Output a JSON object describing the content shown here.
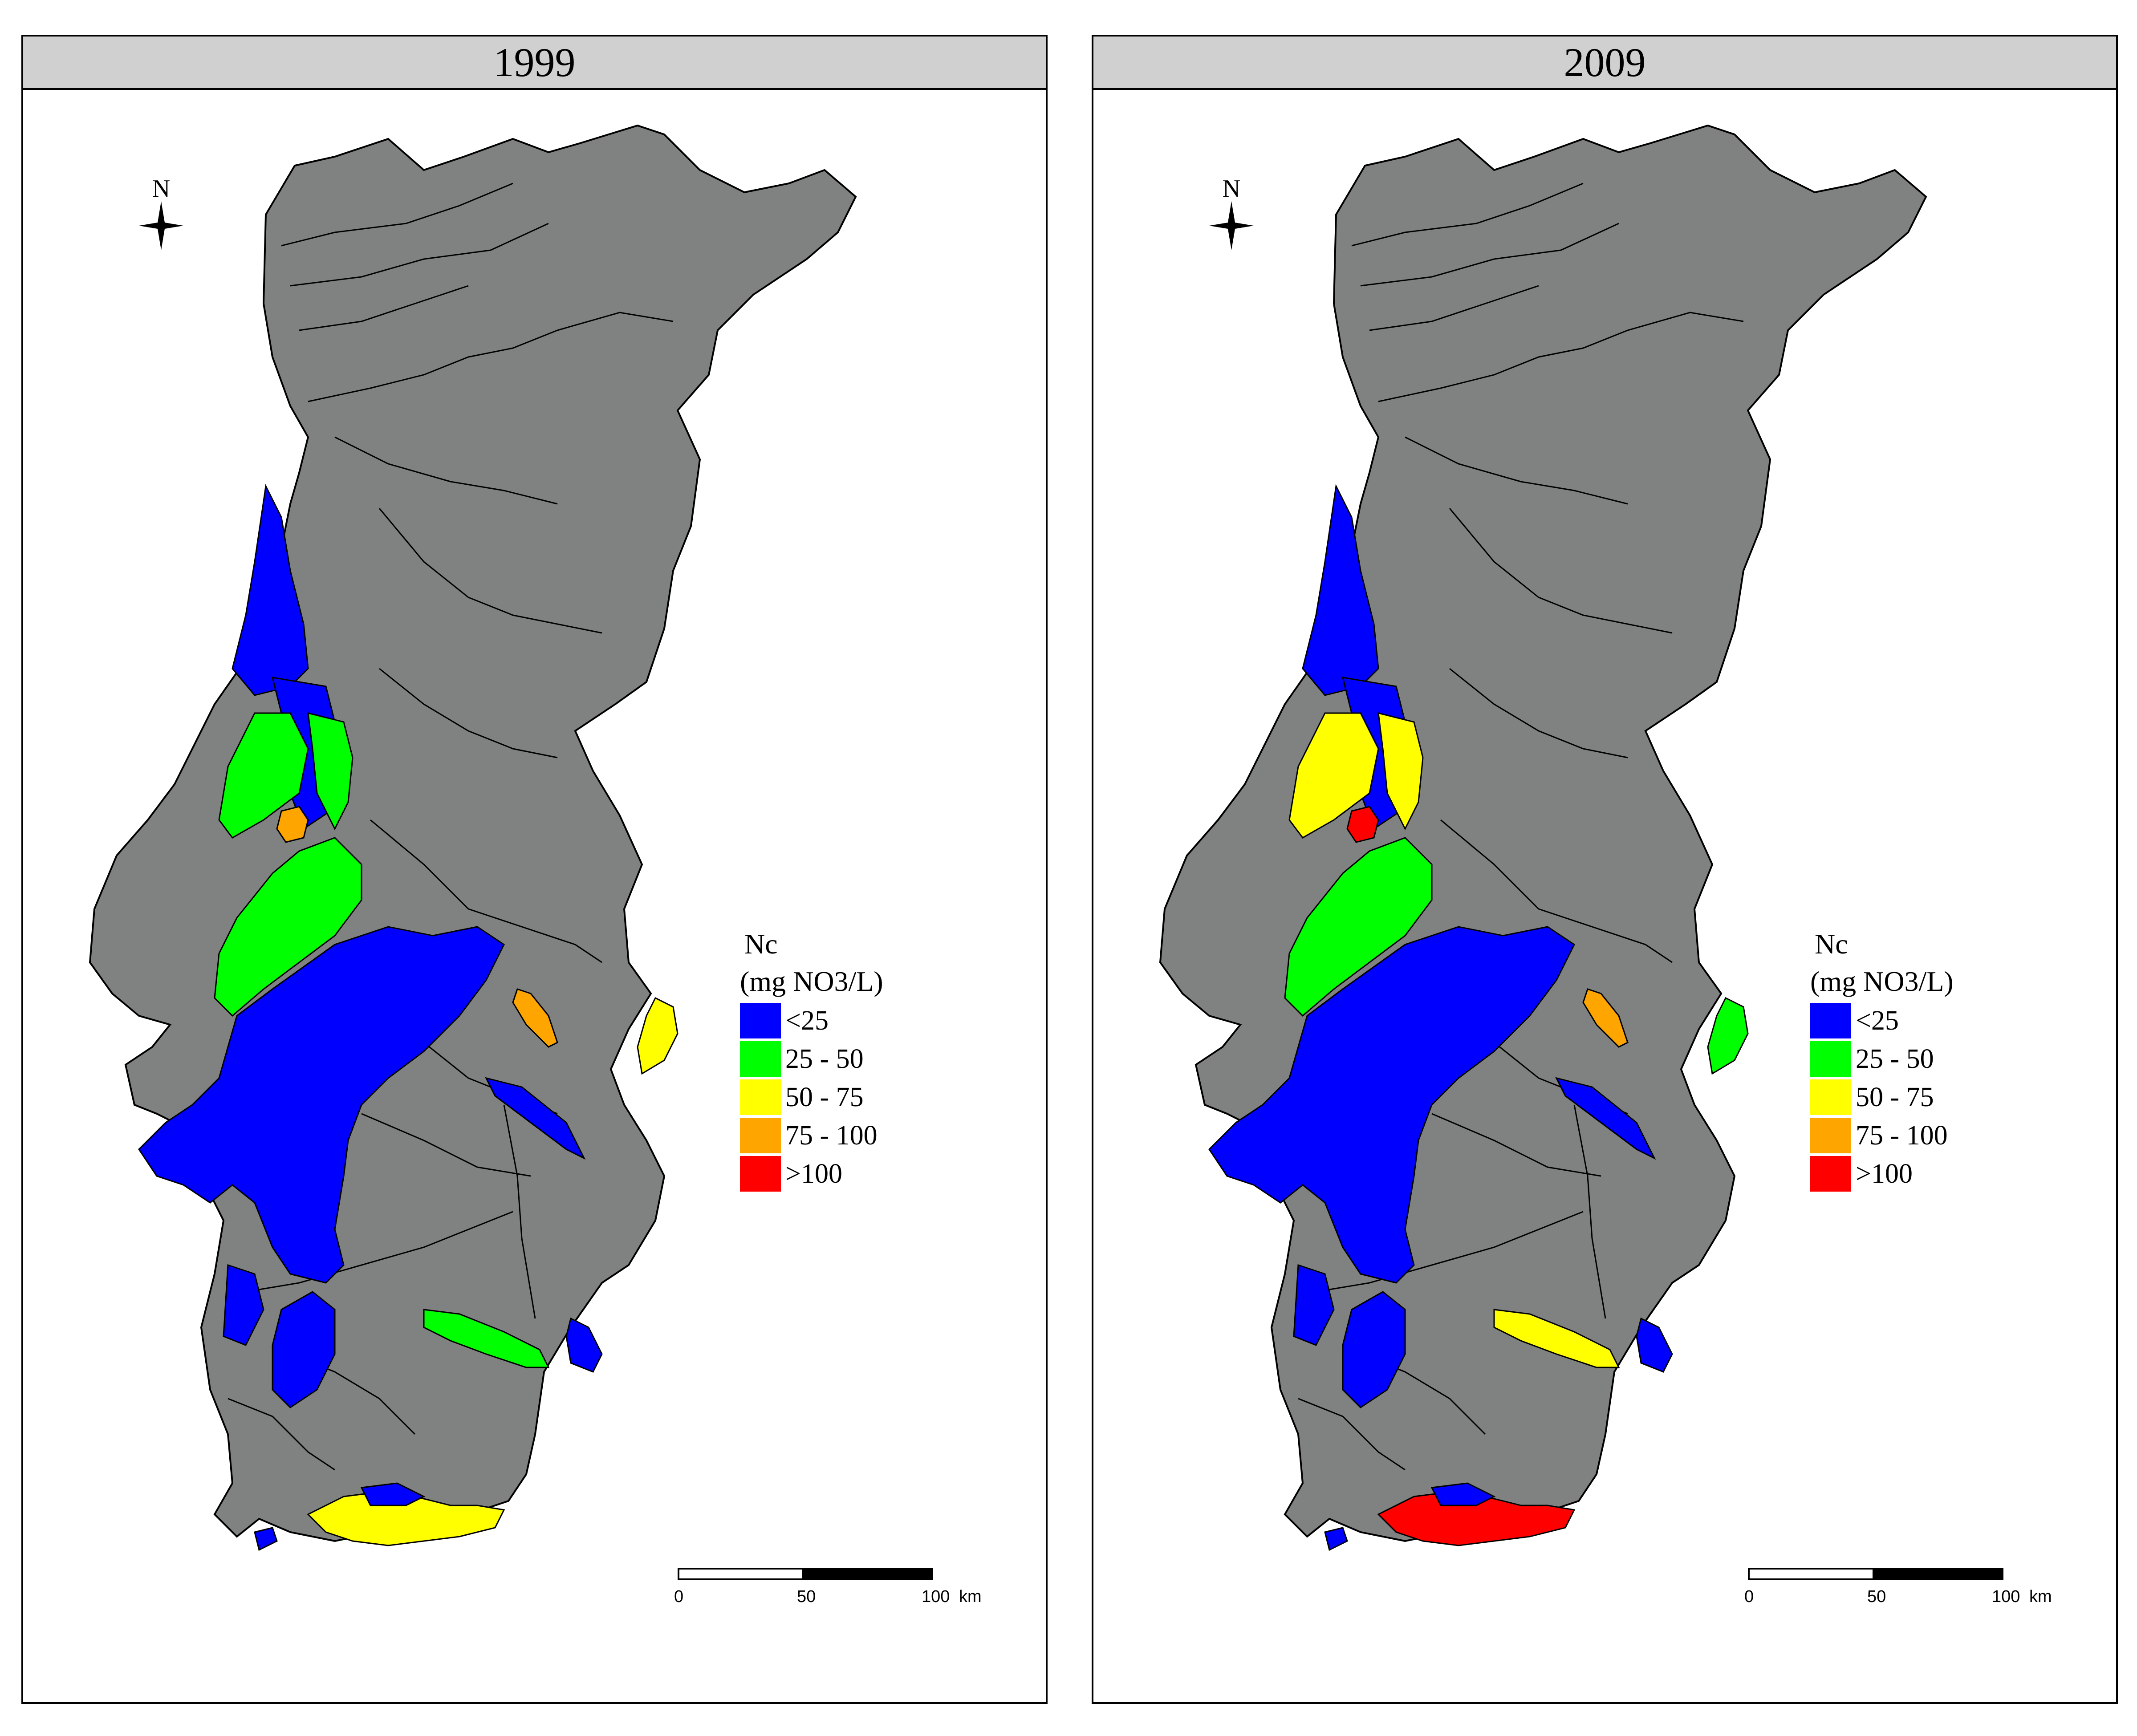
{
  "panels": [
    {
      "title": "1999"
    },
    {
      "title": "2009"
    }
  ],
  "north_label": "N",
  "legend": {
    "title": "Nc",
    "unit": "(mg NO3/L)",
    "items": [
      {
        "label": "<25",
        "color": "#0000ff"
      },
      {
        "label": "25 - 50",
        "color": "#00ff00"
      },
      {
        "label": "50 - 75",
        "color": "#ffff00"
      },
      {
        "label": " 75 - 100",
        "color": "#ffa500"
      },
      {
        "label": ">100",
        "color": "#ff0000"
      }
    ]
  },
  "scalebar": {
    "ticks": [
      "0",
      "50",
      "100"
    ],
    "unit": "km"
  },
  "colors": {
    "land": "#808282",
    "frame": "#000000",
    "header": "#d0d0d0"
  },
  "zones": {
    "1999": {
      "north_coast": "<25",
      "central_west": "25 - 50",
      "aveiro_spot": " 75 - 100",
      "central_band": "25 - 50",
      "tejo_basin": "<25",
      "east_small": " 75 - 100",
      "east_border": "50 - 75",
      "south_band": "25 - 50",
      "algarve": "50 - 75"
    },
    "2009": {
      "north_coast": "<25",
      "central_west": "50 - 75",
      "aveiro_spot": ">100",
      "central_band": "25 - 50",
      "tejo_basin": "<25",
      "east_small": " 75 - 100",
      "east_border": "25 - 50",
      "south_band": "50 - 75",
      "algarve": ">100"
    }
  }
}
